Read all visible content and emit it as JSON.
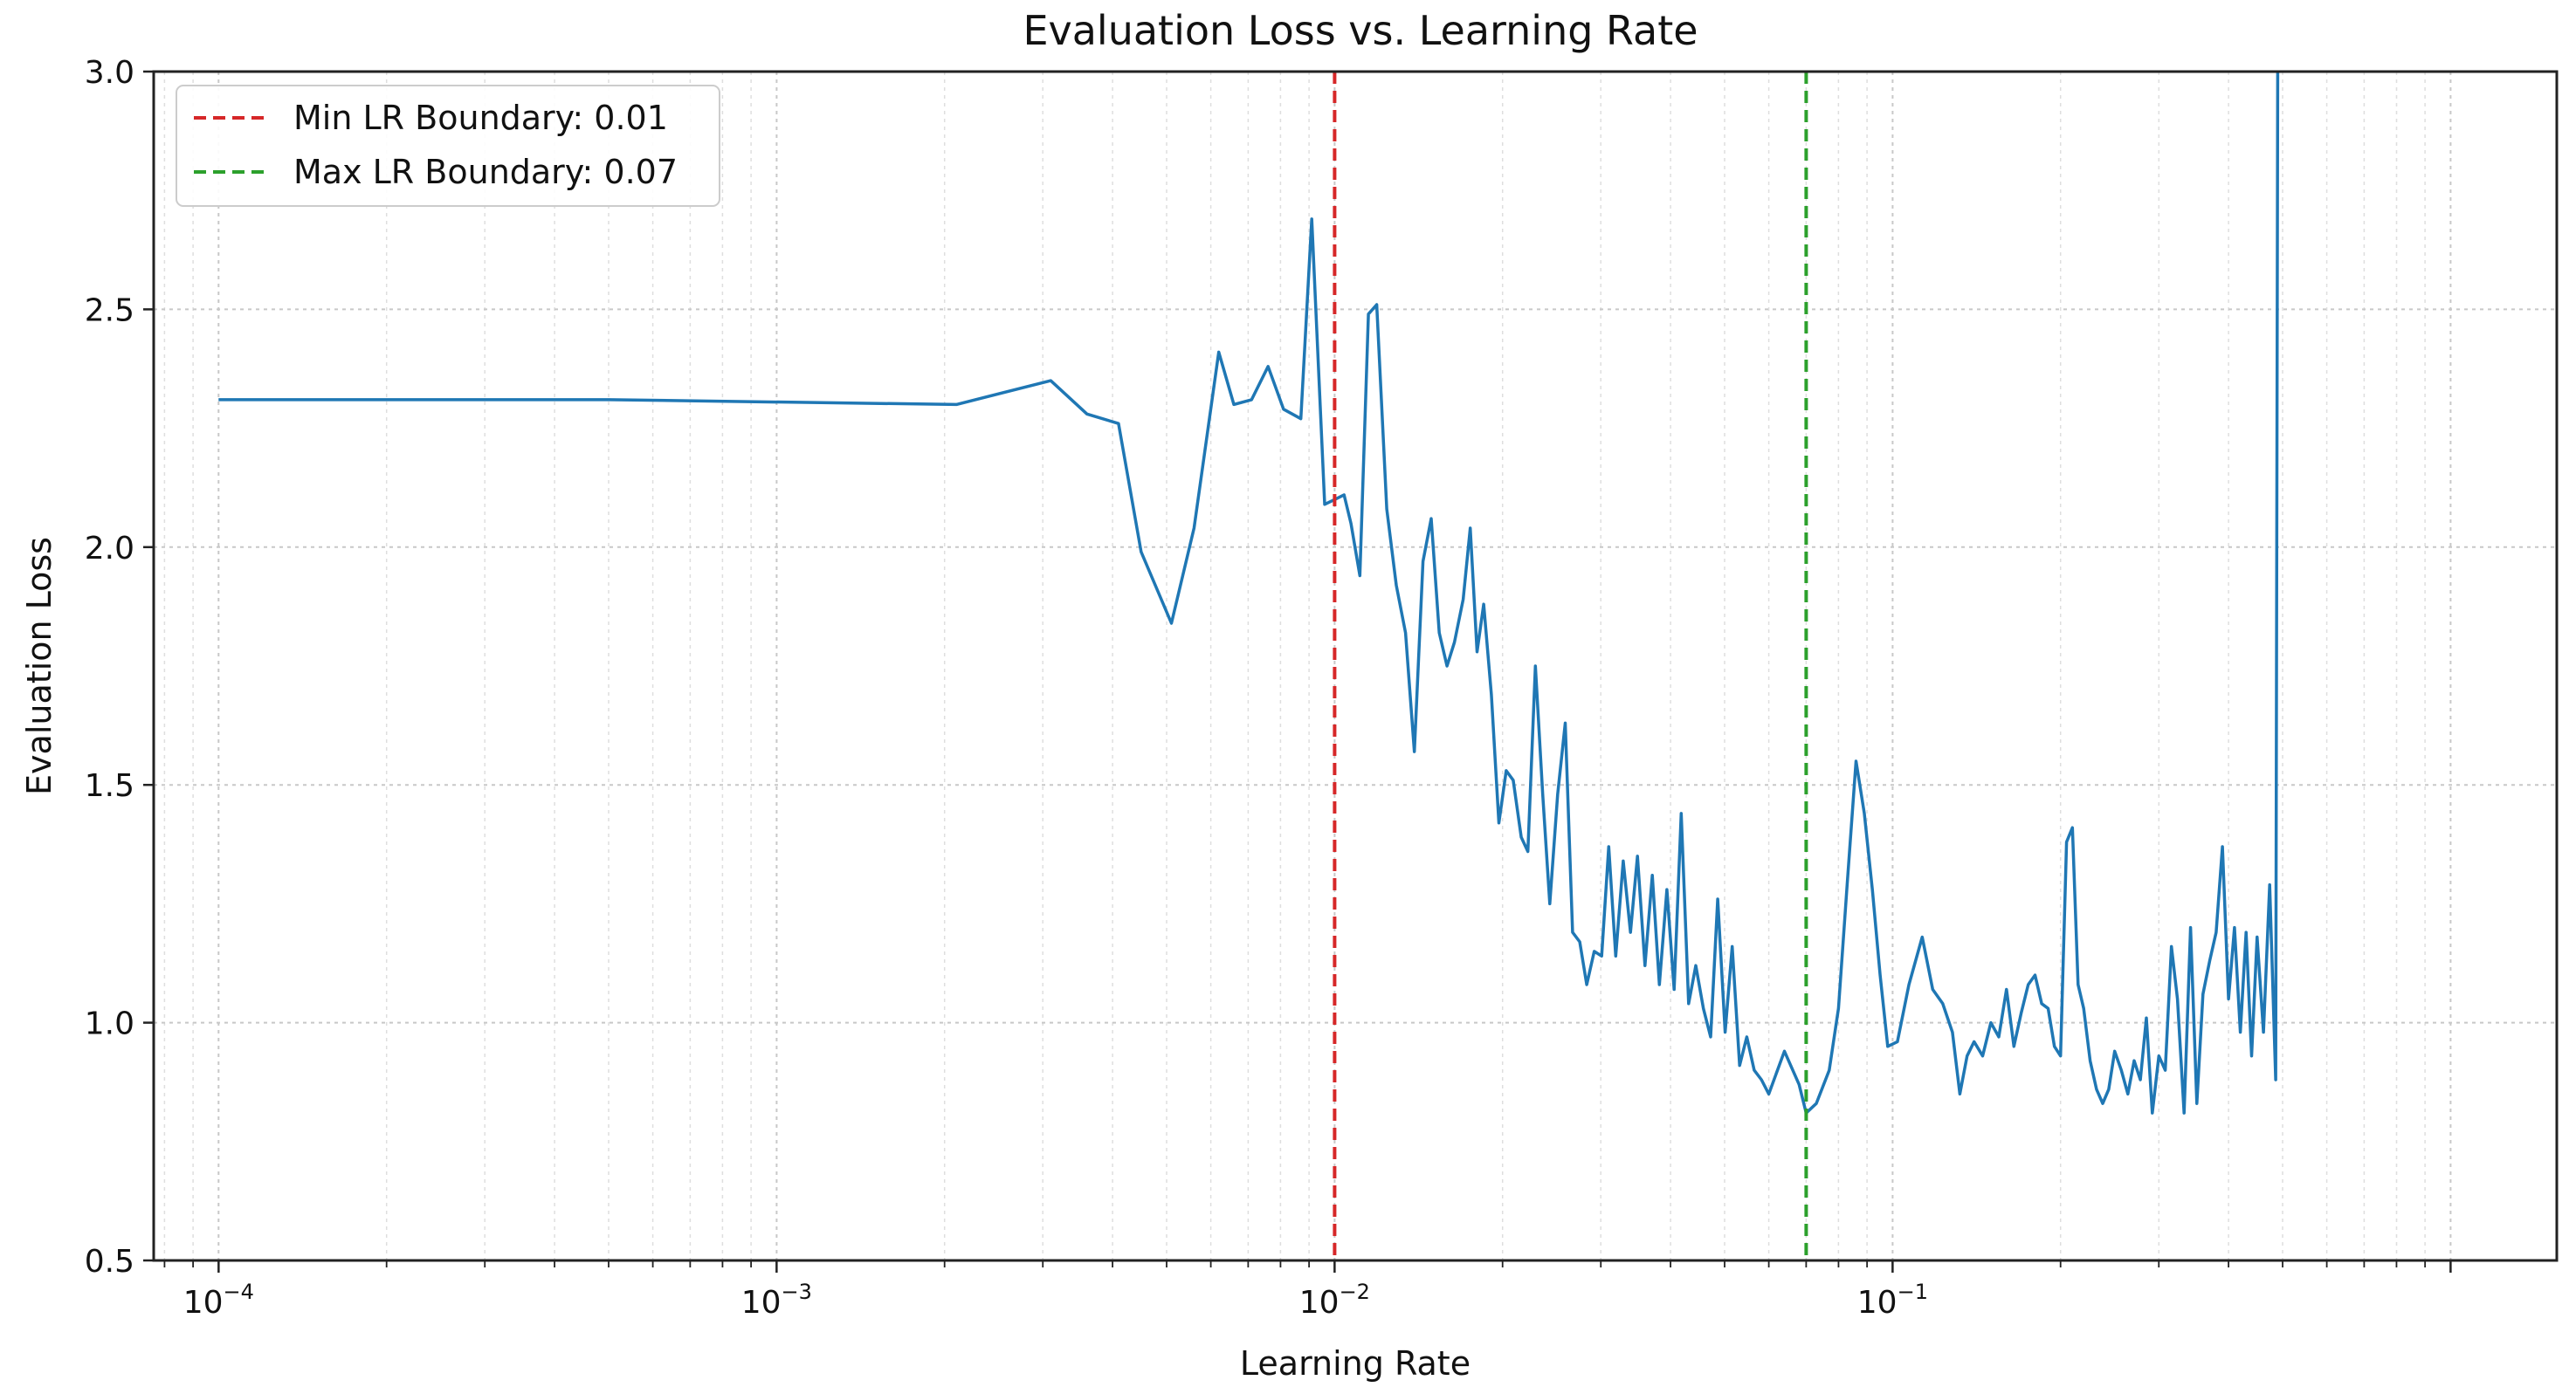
{
  "chart_data": {
    "type": "line",
    "title": "Evaluation Loss vs. Learning Rate",
    "xlabel": "Learning Rate",
    "ylabel": "Evaluation Loss",
    "xscale": "log",
    "xlim": [
      7.65e-05,
      1.55
    ],
    "ylim": [
      0.5,
      3.0
    ],
    "grid": true,
    "legend_position": "top-left",
    "x_ticks": [
      {
        "value": 0.0001,
        "base": "10",
        "exp": "−4"
      },
      {
        "value": 0.001,
        "base": "10",
        "exp": "−3"
      },
      {
        "value": 0.01,
        "base": "10",
        "exp": "−2"
      },
      {
        "value": 0.1,
        "base": "10",
        "exp": "−1"
      }
    ],
    "y_ticks": [
      {
        "value": 0.5,
        "label": "0.5"
      },
      {
        "value": 1.0,
        "label": "1.0"
      },
      {
        "value": 1.5,
        "label": "1.5"
      },
      {
        "value": 2.0,
        "label": "2.0"
      },
      {
        "value": 2.5,
        "label": "2.5"
      },
      {
        "value": 3.0,
        "label": "3.0"
      }
    ],
    "reference_lines": [
      {
        "name": "min-lr-boundary",
        "label": "Min LR Boundary: 0.01",
        "x": 0.01,
        "color": "#d62728"
      },
      {
        "name": "max-lr-boundary",
        "label": "Max LR Boundary: 0.07",
        "x": 0.07,
        "color": "#2ca02c"
      }
    ],
    "series": [
      {
        "name": "Evaluation Loss",
        "color": "#1f77b4",
        "points": [
          [
            0.0001,
            2.31
          ],
          [
            0.0005,
            2.31
          ],
          [
            0.0021,
            2.3
          ],
          [
            0.0031,
            2.35
          ],
          [
            0.0036,
            2.28
          ],
          [
            0.0041,
            2.26
          ],
          [
            0.0045,
            1.99
          ],
          [
            0.0051,
            1.84
          ],
          [
            0.0056,
            2.04
          ],
          [
            0.0062,
            2.41
          ],
          [
            0.0066,
            2.3
          ],
          [
            0.0071,
            2.31
          ],
          [
            0.0076,
            2.38
          ],
          [
            0.0081,
            2.29
          ],
          [
            0.0087,
            2.27
          ],
          [
            0.0091,
            2.69
          ],
          [
            0.0096,
            2.09
          ],
          [
            0.01,
            2.1
          ],
          [
            0.0104,
            2.11
          ],
          [
            0.0107,
            2.05
          ],
          [
            0.0111,
            1.94
          ],
          [
            0.0115,
            2.49
          ],
          [
            0.0119,
            2.51
          ],
          [
            0.0124,
            2.08
          ],
          [
            0.0129,
            1.92
          ],
          [
            0.0134,
            1.82
          ],
          [
            0.0139,
            1.57
          ],
          [
            0.0144,
            1.97
          ],
          [
            0.0149,
            2.06
          ],
          [
            0.0154,
            1.82
          ],
          [
            0.0159,
            1.75
          ],
          [
            0.0164,
            1.8
          ],
          [
            0.017,
            1.89
          ],
          [
            0.0175,
            2.04
          ],
          [
            0.018,
            1.78
          ],
          [
            0.0185,
            1.88
          ],
          [
            0.0191,
            1.69
          ],
          [
            0.0197,
            1.42
          ],
          [
            0.0203,
            1.53
          ],
          [
            0.0209,
            1.51
          ],
          [
            0.0216,
            1.39
          ],
          [
            0.0222,
            1.36
          ],
          [
            0.0229,
            1.75
          ],
          [
            0.0236,
            1.48
          ],
          [
            0.0243,
            1.25
          ],
          [
            0.0251,
            1.48
          ],
          [
            0.0259,
            1.63
          ],
          [
            0.0267,
            1.19
          ],
          [
            0.0275,
            1.17
          ],
          [
            0.0283,
            1.08
          ],
          [
            0.0292,
            1.15
          ],
          [
            0.0301,
            1.14
          ],
          [
            0.031,
            1.37
          ],
          [
            0.0319,
            1.14
          ],
          [
            0.0329,
            1.34
          ],
          [
            0.0339,
            1.19
          ],
          [
            0.0349,
            1.35
          ],
          [
            0.036,
            1.12
          ],
          [
            0.0371,
            1.31
          ],
          [
            0.0382,
            1.08
          ],
          [
            0.0394,
            1.28
          ],
          [
            0.0406,
            1.07
          ],
          [
            0.0418,
            1.44
          ],
          [
            0.0431,
            1.04
          ],
          [
            0.0444,
            1.12
          ],
          [
            0.0458,
            1.03
          ],
          [
            0.0472,
            0.97
          ],
          [
            0.0486,
            1.26
          ],
          [
            0.0501,
            0.98
          ],
          [
            0.0516,
            1.16
          ],
          [
            0.0532,
            0.91
          ],
          [
            0.0548,
            0.97
          ],
          [
            0.0565,
            0.9
          ],
          [
            0.0582,
            0.88
          ],
          [
            0.06,
            0.85
          ],
          [
            0.064,
            0.94
          ],
          [
            0.068,
            0.87
          ],
          [
            0.07,
            0.81
          ],
          [
            0.073,
            0.83
          ],
          [
            0.077,
            0.9
          ],
          [
            0.08,
            1.03
          ],
          [
            0.083,
            1.3
          ],
          [
            0.086,
            1.55
          ],
          [
            0.089,
            1.44
          ],
          [
            0.092,
            1.28
          ],
          [
            0.095,
            1.1
          ],
          [
            0.098,
            0.95
          ],
          [
            0.102,
            0.96
          ],
          [
            0.107,
            1.08
          ],
          [
            0.113,
            1.18
          ],
          [
            0.118,
            1.07
          ],
          [
            0.123,
            1.04
          ],
          [
            0.128,
            0.98
          ],
          [
            0.132,
            0.85
          ],
          [
            0.136,
            0.93
          ],
          [
            0.14,
            0.96
          ],
          [
            0.145,
            0.93
          ],
          [
            0.15,
            1.0
          ],
          [
            0.155,
            0.97
          ],
          [
            0.16,
            1.07
          ],
          [
            0.165,
            0.95
          ],
          [
            0.17,
            1.02
          ],
          [
            0.175,
            1.08
          ],
          [
            0.18,
            1.1
          ],
          [
            0.185,
            1.04
          ],
          [
            0.19,
            1.03
          ],
          [
            0.195,
            0.95
          ],
          [
            0.2,
            0.93
          ],
          [
            0.205,
            1.38
          ],
          [
            0.21,
            1.41
          ],
          [
            0.215,
            1.08
          ],
          [
            0.22,
            1.03
          ],
          [
            0.226,
            0.92
          ],
          [
            0.232,
            0.86
          ],
          [
            0.238,
            0.83
          ],
          [
            0.244,
            0.86
          ],
          [
            0.25,
            0.94
          ],
          [
            0.257,
            0.9
          ],
          [
            0.264,
            0.85
          ],
          [
            0.271,
            0.92
          ],
          [
            0.278,
            0.88
          ],
          [
            0.285,
            1.01
          ],
          [
            0.292,
            0.81
          ],
          [
            0.3,
            0.93
          ],
          [
            0.308,
            0.9
          ],
          [
            0.316,
            1.16
          ],
          [
            0.324,
            1.05
          ],
          [
            0.333,
            0.81
          ],
          [
            0.342,
            1.2
          ],
          [
            0.351,
            0.83
          ],
          [
            0.36,
            1.06
          ],
          [
            0.37,
            1.13
          ],
          [
            0.38,
            1.19
          ],
          [
            0.39,
            1.37
          ],
          [
            0.4,
            1.05
          ],
          [
            0.41,
            1.2
          ],
          [
            0.42,
            0.98
          ],
          [
            0.43,
            1.19
          ],
          [
            0.44,
            0.93
          ],
          [
            0.45,
            1.18
          ],
          [
            0.462,
            0.98
          ],
          [
            0.474,
            1.29
          ],
          [
            0.486,
            0.88
          ],
          [
            0.49,
            3.0
          ]
        ]
      }
    ]
  }
}
